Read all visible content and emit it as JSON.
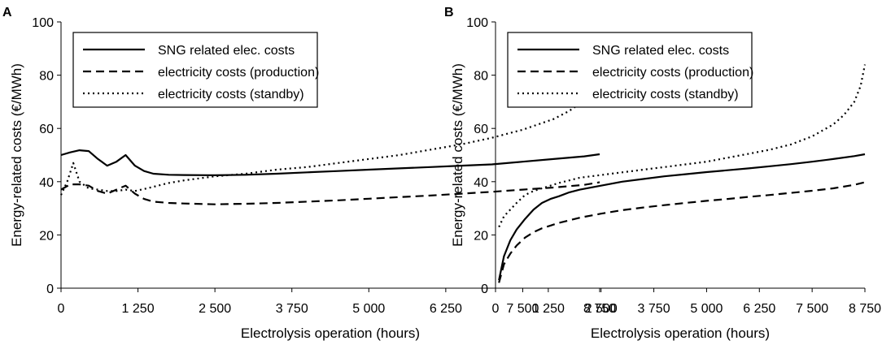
{
  "chart_data": [
    {
      "panel": "A",
      "type": "line",
      "xlabel": "Electrolysis operation (hours)",
      "ylabel": "Energy-related costs (€/MWh)",
      "xlim": [
        0,
        8750
      ],
      "ylim": [
        0,
        100
      ],
      "xticks": [
        0,
        1250,
        2500,
        3750,
        5000,
        6250,
        7500,
        8750
      ],
      "xtick_labels": [
        "0",
        "1 250",
        "2 500",
        "3 750",
        "5 000",
        "6 250",
        "7 500",
        "8 750"
      ],
      "yticks": [
        0,
        20,
        40,
        60,
        80,
        100
      ],
      "ytick_labels": [
        "0",
        "20",
        "40",
        "60",
        "80",
        "100"
      ],
      "legend": {
        "placement": "top-left"
      },
      "series": [
        {
          "name": "SNG related elec. costs",
          "style": "solid",
          "x": [
            0,
            150,
            300,
            450,
            600,
            750,
            900,
            1050,
            1200,
            1350,
            1500,
            1750,
            2000,
            2500,
            3000,
            3500,
            4000,
            4500,
            5000,
            5500,
            6000,
            6500,
            7000,
            7500,
            8000,
            8500,
            8750
          ],
          "y": [
            50,
            51,
            51.8,
            51.5,
            48.5,
            46,
            47.5,
            50,
            46,
            44,
            43,
            42.6,
            42.5,
            42.4,
            42.6,
            43,
            43.5,
            44,
            44.5,
            45,
            45.5,
            46,
            46.5,
            47.5,
            48.5,
            49.5,
            50.3
          ]
        },
        {
          "name": "electricity costs (production)",
          "style": "dashed",
          "x": [
            0,
            150,
            300,
            450,
            600,
            750,
            900,
            1050,
            1200,
            1350,
            1500,
            1750,
            2000,
            2500,
            3000,
            3500,
            4000,
            4500,
            5000,
            5500,
            6000,
            6500,
            7000,
            7500,
            8000,
            8500,
            8750
          ],
          "y": [
            37,
            39,
            39,
            38.5,
            36.5,
            35.5,
            37,
            38.5,
            35.5,
            33.5,
            32.5,
            32,
            31.8,
            31.5,
            31.7,
            32,
            32.5,
            33,
            33.6,
            34.2,
            34.8,
            35.5,
            36.2,
            37,
            37.8,
            38.8,
            39.8
          ]
        },
        {
          "name": "electricity costs (standby)",
          "style": "dotted",
          "x": [
            0,
            100,
            200,
            300,
            450,
            600,
            750,
            900,
            1050,
            1200,
            1400,
            1750,
            2000,
            2500,
            3000,
            3500,
            4000,
            4500,
            5000,
            5500,
            6000,
            6500,
            7000,
            7500,
            8000,
            8250,
            8500,
            8650,
            8750
          ],
          "y": [
            35,
            40,
            47,
            40,
            37.5,
            37,
            36.5,
            36.5,
            37,
            36.5,
            37.5,
            39.5,
            40.5,
            42,
            43,
            44.5,
            45.5,
            47,
            48.5,
            50,
            52,
            54,
            56.5,
            59.5,
            63.5,
            66.5,
            70.5,
            75,
            80.5
          ]
        }
      ]
    },
    {
      "panel": "B",
      "type": "line",
      "xlabel": "Electrolysis operation (hours)",
      "ylabel": "Energy-related costs (€/MWh)",
      "xlim": [
        0,
        8750
      ],
      "ylim": [
        0,
        100
      ],
      "xticks": [
        0,
        1250,
        2500,
        3750,
        5000,
        6250,
        7500,
        8750
      ],
      "xtick_labels": [
        "0",
        "1 250",
        "2 500",
        "3 750",
        "5 000",
        "6 250",
        "7 500",
        "8 750"
      ],
      "yticks": [
        0,
        20,
        40,
        60,
        80,
        100
      ],
      "ytick_labels": [
        "0",
        "20",
        "40",
        "60",
        "80",
        "100"
      ],
      "legend": {
        "placement": "top-left"
      },
      "series": [
        {
          "name": "SNG related elec. costs",
          "style": "solid",
          "x": [
            80,
            200,
            350,
            500,
            700,
            900,
            1100,
            1300,
            1500,
            1750,
            2000,
            2500,
            3000,
            3500,
            4000,
            4500,
            5000,
            5500,
            6000,
            6500,
            7000,
            7500,
            8000,
            8500,
            8750
          ],
          "y": [
            3,
            12,
            18,
            22,
            26,
            29.5,
            32,
            33.5,
            34.5,
            36,
            37,
            38.5,
            40,
            41,
            42,
            42.8,
            43.6,
            44.3,
            45,
            45.8,
            46.6,
            47.5,
            48.5,
            49.6,
            50.3
          ]
        },
        {
          "name": "electricity costs (production)",
          "style": "dashed",
          "x": [
            80,
            200,
            350,
            500,
            700,
            900,
            1100,
            1300,
            1500,
            1750,
            2000,
            2500,
            3000,
            3500,
            4000,
            4500,
            5000,
            5500,
            6000,
            6500,
            7000,
            7500,
            8000,
            8500,
            8750
          ],
          "y": [
            2,
            9,
            13,
            16,
            19,
            21,
            22.5,
            23.5,
            24.5,
            25.5,
            26.5,
            28,
            29.3,
            30.3,
            31.2,
            32,
            32.8,
            33.5,
            34.3,
            35,
            35.8,
            36.6,
            37.5,
            38.8,
            39.8
          ]
        },
        {
          "name": "electricity costs (standby)",
          "style": "dotted",
          "x": [
            80,
            200,
            350,
            500,
            700,
            900,
            1100,
            1300,
            1500,
            1750,
            2000,
            2500,
            3000,
            3500,
            4000,
            4500,
            5000,
            5500,
            6000,
            6500,
            7000,
            7500,
            8000,
            8250,
            8500,
            8650,
            8750
          ],
          "y": [
            23,
            27,
            29.5,
            32,
            35,
            36.5,
            37.5,
            38.5,
            39.5,
            40.5,
            41.5,
            42.5,
            43.5,
            44.5,
            45.5,
            46.5,
            47.5,
            49,
            50.5,
            52,
            54,
            57,
            61.5,
            65,
            70,
            76,
            84
          ]
        }
      ]
    }
  ]
}
